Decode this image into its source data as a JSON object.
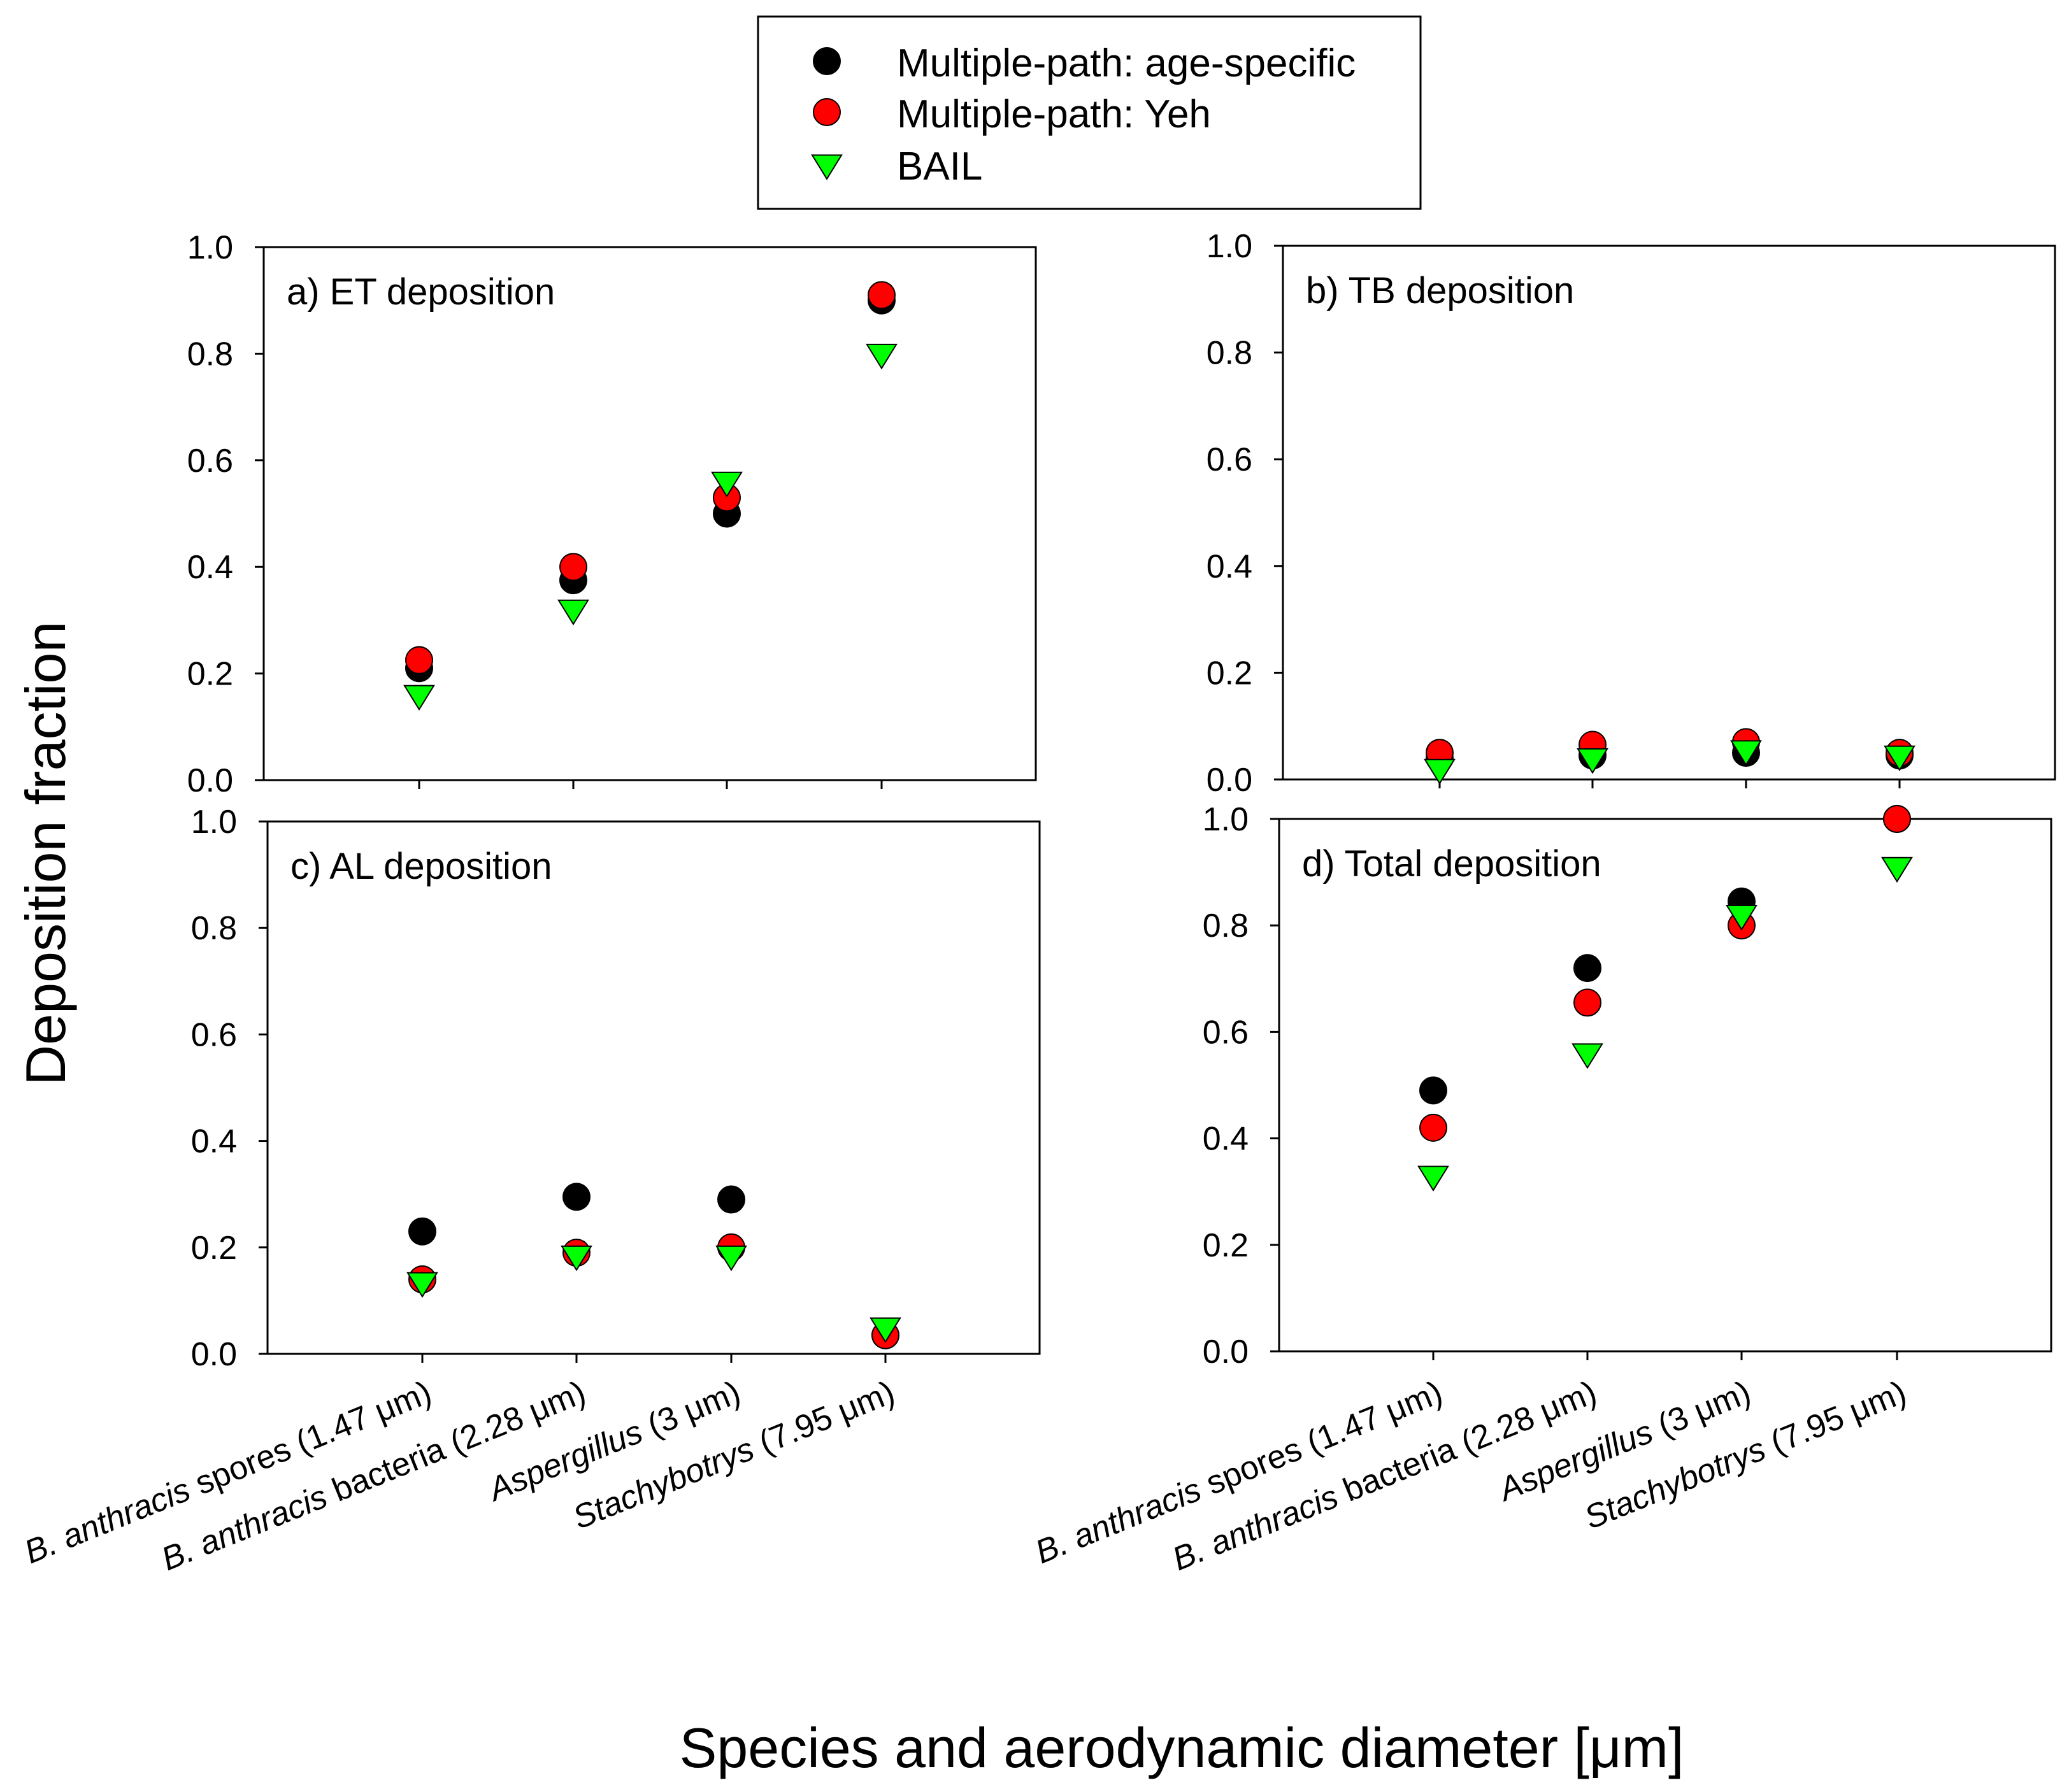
{
  "figure": {
    "ylabel": "Deposition fraction",
    "xlabel": "Species and aerodynamic diameter [μm]"
  },
  "legend": [
    {
      "label": "Multiple-path:  age-specific",
      "marker": "circle",
      "color": "#000000"
    },
    {
      "label": "Multiple-path: Yeh",
      "marker": "circle",
      "color": "#ff0000"
    },
    {
      "label": "BAIL",
      "marker": "triangle-down",
      "color": "#00ff00"
    }
  ],
  "categories": [
    {
      "italic": "B. anthracis",
      "rest": " spores (1.47 μm)"
    },
    {
      "italic": "B. anthracis",
      "rest": " bacteria (2.28 μm)"
    },
    {
      "italic": "Aspergillus",
      "rest": " (3 μm)"
    },
    {
      "italic": "Stachybotrys",
      "rest": " (7.95 μm)"
    }
  ],
  "y_ticks": [
    "0.0",
    "0.2",
    "0.4",
    "0.6",
    "0.8",
    "1.0"
  ],
  "chart_data": [
    {
      "type": "scatter",
      "title": "a) ET deposition",
      "categories": [
        "B. anthracis spores (1.47 μm)",
        "B. anthracis bacteria (2.28 μm)",
        "Aspergillus (3 μm)",
        "Stachybotrys (7.95 μm)"
      ],
      "ylim": [
        0,
        1
      ],
      "series": [
        {
          "name": "Multiple-path:  age-specific",
          "values": [
            0.21,
            0.375,
            0.5,
            0.9
          ]
        },
        {
          "name": "Multiple-path: Yeh",
          "values": [
            0.225,
            0.4,
            0.53,
            0.91
          ]
        },
        {
          "name": "BAIL",
          "values": [
            0.16,
            0.32,
            0.56,
            0.8
          ]
        }
      ]
    },
    {
      "type": "scatter",
      "title": "b) TB deposition",
      "categories": [
        "B. anthracis spores (1.47 μm)",
        "B. anthracis bacteria (2.28 μm)",
        "Aspergillus (3 μm)",
        "Stachybotrys (7.95 μm)"
      ],
      "ylim": [
        0,
        1
      ],
      "series": [
        {
          "name": "Multiple-path:  age-specific",
          "values": [
            0.04,
            0.045,
            0.05,
            0.045
          ]
        },
        {
          "name": "Multiple-path: Yeh",
          "values": [
            0.05,
            0.065,
            0.07,
            0.05
          ]
        },
        {
          "name": "BAIL",
          "values": [
            0.02,
            0.04,
            0.055,
            0.045
          ]
        }
      ]
    },
    {
      "type": "scatter",
      "title": "c) AL deposition",
      "categories": [
        "B. anthracis spores (1.47 μm)",
        "B. anthracis bacteria (2.28 μm)",
        "Aspergillus (3 μm)",
        "Stachybotrys (7.95 μm)"
      ],
      "ylim": [
        0,
        1
      ],
      "series": [
        {
          "name": "Multiple-path:  age-specific",
          "values": [
            0.23,
            0.295,
            0.29,
            0.035
          ]
        },
        {
          "name": "Multiple-path: Yeh",
          "values": [
            0.14,
            0.19,
            0.2,
            0.035
          ]
        },
        {
          "name": "BAIL",
          "values": [
            0.135,
            0.185,
            0.185,
            0.05
          ]
        }
      ]
    },
    {
      "type": "scatter",
      "title": "d) Total deposition",
      "categories": [
        "B. anthracis spores (1.47 μm)",
        "B. anthracis bacteria (2.28 μm)",
        "Aspergillus (3 μm)",
        "Stachybotrys (7.95 μm)"
      ],
      "ylim": [
        0,
        1
      ],
      "series": [
        {
          "name": "Multiple-path:  age-specific",
          "values": [
            0.49,
            0.72,
            0.845,
            1.0
          ]
        },
        {
          "name": "Multiple-path: Yeh",
          "values": [
            0.42,
            0.655,
            0.8,
            1.0
          ]
        },
        {
          "name": "BAIL",
          "values": [
            0.33,
            0.56,
            0.82,
            0.91
          ]
        }
      ]
    }
  ]
}
